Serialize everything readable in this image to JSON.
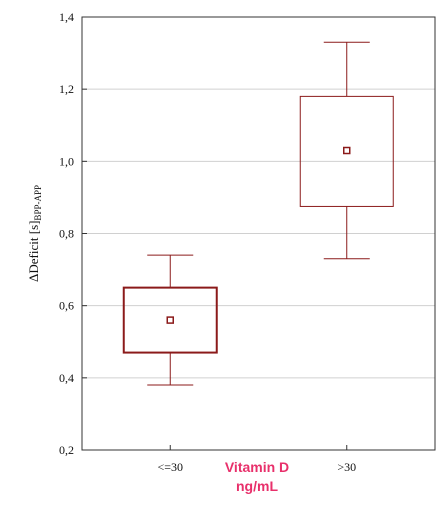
{
  "chart_data": {
    "type": "box",
    "ylabel": "ΔDeficit [s]",
    "ylabel_sub": "BPP-APP",
    "xlabel_line1": "Vitamin D",
    "xlabel_line2": "ng/mL",
    "ylim": [
      0.2,
      1.4
    ],
    "yticks": [
      0.2,
      0.4,
      0.6,
      0.8,
      1.0,
      1.2,
      1.4
    ],
    "ytick_labels": [
      "0,2",
      "0,4",
      "0,6",
      "0,8",
      "1,0",
      "1,2",
      "1,4"
    ],
    "grid": true,
    "color": "#8b1a1a",
    "groups": [
      {
        "category": "<=30",
        "whisker_low": 0.38,
        "box_low": 0.47,
        "center": 0.56,
        "box_high": 0.65,
        "whisker_high": 0.74
      },
      {
        "category": ">30",
        "whisker_low": 0.73,
        "box_low": 0.875,
        "center": 1.03,
        "box_high": 1.18,
        "whisker_high": 1.33
      }
    ]
  }
}
